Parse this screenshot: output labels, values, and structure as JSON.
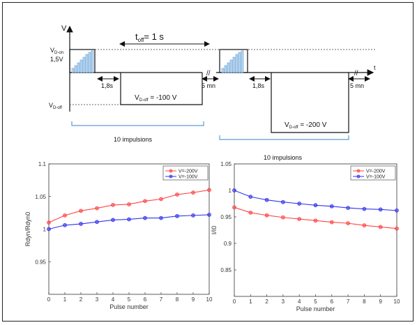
{
  "timing_diagram": {
    "v_axis_label": "V",
    "t_axis_label": "t",
    "vd_on_label": "V",
    "vd_on_sub": "D-on",
    "vd_on_value": "1,5V",
    "vd_off_label": "V",
    "vd_off_sub": "D-off",
    "t_off_label": "t",
    "t_off_sub": "off",
    "t_off_value": "= 1 s",
    "delay_left": "1,8s",
    "delay_right": "1,8s",
    "gap_left": "5 mn",
    "gap_right": "5 mn",
    "break_mark": "//",
    "pulse1_label": "V",
    "pulse1_sub": "D-off",
    "pulse1_value": " = -100 V",
    "pulse2_label": "V",
    "pulse2_sub": "D-off",
    "pulse2_value": " = -200 V",
    "group1_caption": "10 impulsions",
    "group2_caption": "10 impulsions"
  },
  "colors": {
    "red": "#ff4444",
    "blue": "#3333ee",
    "bracket": "#5b9bd5"
  },
  "chart_data": [
    {
      "type": "line",
      "xlabel": "Pulse number",
      "ylabel": "Rdyn/Rdyn0",
      "xlim": [
        0,
        10
      ],
      "ylim": [
        0.9,
        1.1
      ],
      "x_ticks": [
        "0",
        "1",
        "2",
        "3",
        "4",
        "5",
        "6",
        "7",
        "8",
        "9",
        "10"
      ],
      "y_ticks": [
        "0.95",
        "1",
        "1.05",
        "1.1"
      ],
      "grid": false,
      "legend_position": "top-right",
      "x": [
        0,
        1,
        2,
        3,
        4,
        5,
        6,
        7,
        8,
        9,
        10
      ],
      "series": [
        {
          "name": "V=-200V",
          "color": "#ff4444",
          "values": [
            1.01,
            1.021,
            1.028,
            1.032,
            1.037,
            1.038,
            1.043,
            1.046,
            1.053,
            1.056,
            1.06
          ]
        },
        {
          "name": "V=-100V",
          "color": "#3333ee",
          "values": [
            1.0,
            1.006,
            1.008,
            1.011,
            1.014,
            1.015,
            1.017,
            1.017,
            1.02,
            1.021,
            1.022
          ]
        }
      ]
    },
    {
      "type": "line",
      "xlabel": "Pulse number",
      "ylabel": "I/I0",
      "xlim": [
        0,
        10
      ],
      "ylim": [
        0.8,
        1.05
      ],
      "x_ticks": [
        "0",
        "1",
        "2",
        "3",
        "4",
        "5",
        "6",
        "7",
        "8",
        "9",
        "10"
      ],
      "y_ticks": [
        "0.85",
        "0.9",
        "0.95",
        "1",
        "1.05"
      ],
      "grid": false,
      "legend_position": "top-right",
      "x": [
        0,
        1,
        2,
        3,
        4,
        5,
        6,
        7,
        8,
        9,
        10
      ],
      "series": [
        {
          "name": "V=-200V",
          "color": "#ff4444",
          "values": [
            0.968,
            0.958,
            0.953,
            0.949,
            0.946,
            0.943,
            0.94,
            0.938,
            0.934,
            0.931,
            0.928
          ]
        },
        {
          "name": "V=-100V",
          "color": "#3333ee",
          "values": [
            1.0,
            0.988,
            0.982,
            0.978,
            0.975,
            0.972,
            0.97,
            0.967,
            0.965,
            0.964,
            0.962
          ]
        }
      ]
    }
  ]
}
